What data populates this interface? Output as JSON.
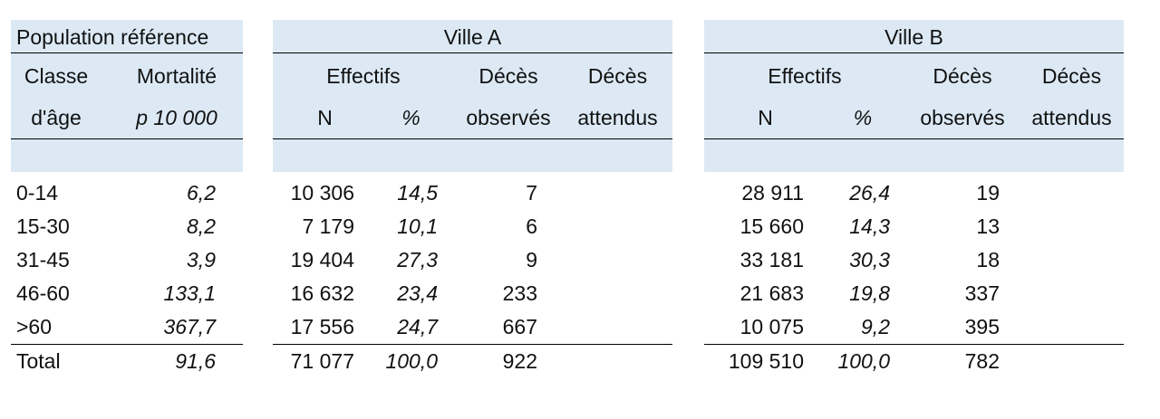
{
  "reference": {
    "title": "Population référence",
    "col1_h1": "Classe",
    "col1_h2": "d'âge",
    "col2_h1": "Mortalité",
    "col2_h2": "p 10 000",
    "rows": [
      {
        "age": "0-14",
        "mort": "6,2"
      },
      {
        "age": "15-30",
        "mort": "8,2"
      },
      {
        "age": "31-45",
        "mort": "3,9"
      },
      {
        "age": "46-60",
        "mort": "133,1"
      },
      {
        "age": ">60",
        "mort": "367,7"
      }
    ],
    "total_label": "Total",
    "total_mort": "91,6"
  },
  "headers": {
    "effectifs": "Effectifs",
    "deces": "Décès",
    "n": "N",
    "pct": "%",
    "observes": "observés",
    "attendus": "attendus"
  },
  "villeA": {
    "title": "Ville A",
    "rows": [
      {
        "n": "10 306",
        "pct": "14,5",
        "obs": "7"
      },
      {
        "n": "7 179",
        "pct": "10,1",
        "obs": "6"
      },
      {
        "n": "19 404",
        "pct": "27,3",
        "obs": "9"
      },
      {
        "n": "16 632",
        "pct": "23,4",
        "obs": "233"
      },
      {
        "n": "17 556",
        "pct": "24,7",
        "obs": "667"
      }
    ],
    "total": {
      "n": "71 077",
      "pct": "100,0",
      "obs": "922"
    }
  },
  "villeB": {
    "title": "Ville B",
    "rows": [
      {
        "n": "28 911",
        "pct": "26,4",
        "obs": "19"
      },
      {
        "n": "15 660",
        "pct": "14,3",
        "obs": "13"
      },
      {
        "n": "33 181",
        "pct": "30,3",
        "obs": "18"
      },
      {
        "n": "21 683",
        "pct": "19,8",
        "obs": "337"
      },
      {
        "n": "10 075",
        "pct": "9,2",
        "obs": "395"
      }
    ],
    "total": {
      "n": "109 510",
      "pct": "100,0",
      "obs": "782"
    }
  }
}
